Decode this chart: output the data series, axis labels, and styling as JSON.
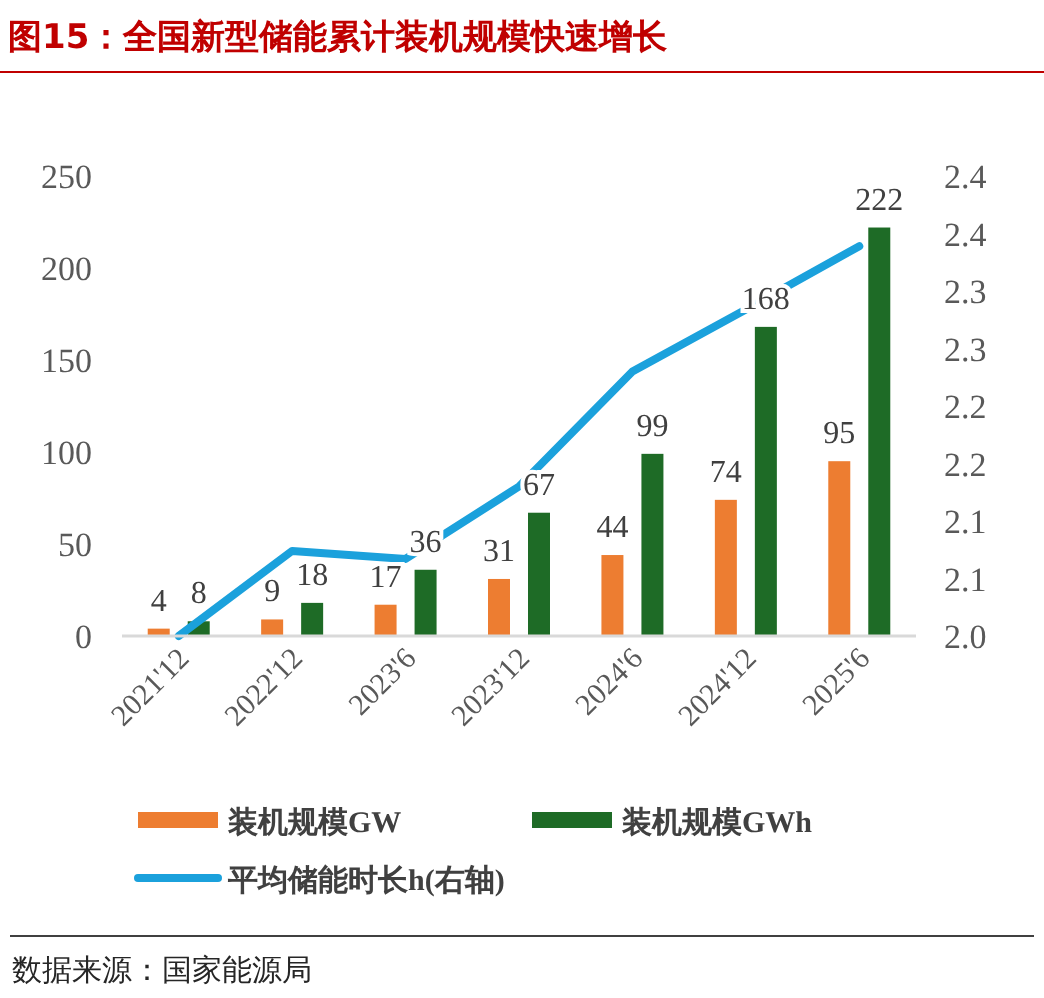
{
  "chart_data": {
    "type": "bar",
    "title": "图15：全国新型储能累计装机规模快速增长",
    "categories": [
      "2021'12",
      "2022'12",
      "2023'6",
      "2023'12",
      "2024'6",
      "2024'12",
      "2025'6"
    ],
    "series": [
      {
        "name": "装机规模GW",
        "color": "#ed7d31",
        "values": [
          4,
          9,
          17,
          31,
          44,
          74,
          95
        ],
        "value_labels": [
          "4",
          "9",
          "17",
          "31",
          "44",
          "74",
          "95"
        ]
      },
      {
        "name": "装机规模GWh",
        "color": "#1e6b26",
        "values": [
          8,
          18,
          36,
          67,
          99,
          168,
          222
        ],
        "value_labels": [
          "8",
          "18",
          "36",
          "67",
          "99",
          "168",
          "222"
        ]
      },
      {
        "name": "平均储能时长h(右轴)",
        "type": "line",
        "axis": "y2",
        "color": "#1ba1dc",
        "values": [
          2.0,
          2.074,
          2.067,
          2.13,
          2.23,
          2.284,
          2.339
        ]
      }
    ],
    "ylim": [
      0,
      250
    ],
    "yticks": [
      0,
      50,
      100,
      150,
      200,
      250
    ],
    "y2lim": [
      2.0,
      2.4
    ],
    "y2ticks": [
      {
        "value": 2.0,
        "label": "2.0"
      },
      {
        "value": 2.05,
        "label": "2.1"
      },
      2.1,
      {
        "value": 2.15,
        "label": "2.2"
      },
      2.2,
      {
        "value": 2.25,
        "label": "2.3"
      },
      2.3,
      {
        "value": 2.35,
        "label": "2.4"
      },
      2.4
    ],
    "legend": "bottom",
    "grid": false,
    "marker": "none",
    "line_style": "solid",
    "annotations": [
      "数据来源：国家能源局"
    ]
  }
}
